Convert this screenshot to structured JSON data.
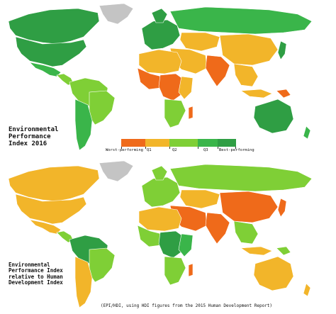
{
  "colors": {
    "worst": "#ef6a1a",
    "q1": "#f2b52a",
    "q2": "#7fcf36",
    "q3": "#3ab54a",
    "best": "#2f9e44",
    "nodata": "#c4c4c4",
    "ocean": "#ffffff",
    "border": "#ffffff"
  },
  "map_top": {
    "title": "Environmental\nPerformance\nIndex 2016",
    "legend": {
      "labels": [
        "Worst-performing",
        "Q1",
        "Q2",
        "Q3",
        "Best-performing"
      ]
    }
  },
  "map_bottom": {
    "title": "Environmental\nPerformance Index\nrelative to Human\nDevelopment Index",
    "caption": "(EPI/HDI, using HDI figures from the 2015 Human Development Report)"
  }
}
